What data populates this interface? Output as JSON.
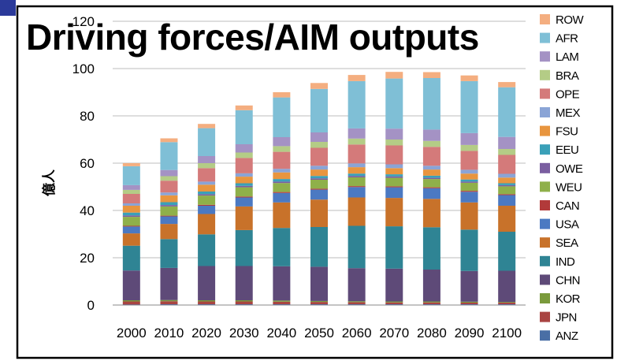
{
  "chart_data": {
    "type": "bar",
    "stacked": true,
    "title": "Driving forces/AIM outputs",
    "ylabel": "億人",
    "xlabel": "",
    "ylim": [
      0,
      120
    ],
    "yticks": [
      0,
      20,
      40,
      60,
      80,
      100,
      120
    ],
    "grid": true,
    "legend_position": "right",
    "categories": [
      "2000",
      "2010",
      "2020",
      "2030",
      "2040",
      "2050",
      "2060",
      "2070",
      "2080",
      "2090",
      "2100"
    ],
    "series": [
      {
        "name": "ANZ",
        "color": "#4a6fa5",
        "values": [
          0.2,
          0.3,
          0.3,
          0.3,
          0.3,
          0.3,
          0.3,
          0.3,
          0.3,
          0.3,
          0.3
        ]
      },
      {
        "name": "JPN",
        "color": "#a94442",
        "values": [
          1.3,
          1.3,
          1.2,
          1.2,
          1.1,
          1.0,
          0.9,
          0.8,
          0.8,
          0.7,
          0.7
        ]
      },
      {
        "name": "KOR",
        "color": "#7a9a3c",
        "values": [
          0.5,
          0.5,
          0.5,
          0.5,
          0.5,
          0.4,
          0.4,
          0.4,
          0.4,
          0.4,
          0.3
        ]
      },
      {
        "name": "CHN",
        "color": "#5e4a78",
        "values": [
          12.6,
          13.6,
          14.5,
          14.5,
          14.5,
          14.5,
          14.0,
          13.9,
          13.5,
          13.0,
          13.2
        ]
      },
      {
        "name": "IND",
        "color": "#2f8494",
        "values": [
          10.5,
          12.2,
          13.4,
          15.2,
          16.2,
          16.8,
          17.9,
          17.9,
          17.9,
          17.5,
          16.5
        ]
      },
      {
        "name": "SEA",
        "color": "#c8722a",
        "values": [
          5.2,
          6.4,
          8.6,
          10.0,
          10.8,
          11.6,
          12.0,
          12.0,
          12.0,
          11.5,
          11.0
        ]
      },
      {
        "name": "USA",
        "color": "#4b79c2",
        "values": [
          2.9,
          3.2,
          3.5,
          3.8,
          4.0,
          4.2,
          4.4,
          4.5,
          4.5,
          4.5,
          4.5
        ]
      },
      {
        "name": "CAN",
        "color": "#b23a3a",
        "values": [
          0.3,
          0.3,
          0.4,
          0.4,
          0.4,
          0.4,
          0.4,
          0.4,
          0.4,
          0.4,
          0.4
        ]
      },
      {
        "name": "WEU",
        "color": "#8fb04a",
        "values": [
          3.8,
          3.9,
          3.9,
          3.9,
          3.8,
          3.8,
          3.7,
          3.6,
          3.5,
          3.4,
          3.3
        ]
      },
      {
        "name": "OWE",
        "color": "#7a5ea0",
        "values": [
          0.6,
          0.6,
          0.6,
          0.6,
          0.6,
          0.6,
          0.6,
          0.6,
          0.5,
          0.5,
          0.5
        ]
      },
      {
        "name": "EEU",
        "color": "#3aa0b8",
        "values": [
          1.2,
          1.2,
          1.1,
          1.1,
          1.1,
          1.0,
          1.0,
          0.9,
          0.9,
          0.9,
          0.8
        ]
      },
      {
        "name": "FSU",
        "color": "#e8953f",
        "values": [
          2.9,
          2.9,
          2.9,
          2.8,
          2.8,
          2.7,
          2.7,
          2.6,
          2.6,
          2.5,
          2.4
        ]
      },
      {
        "name": "MEX",
        "color": "#8aa4d6",
        "values": [
          1.0,
          1.2,
          1.3,
          1.4,
          1.5,
          1.6,
          1.6,
          1.6,
          1.6,
          1.6,
          1.6
        ]
      },
      {
        "name": "OPE",
        "color": "#d47a7a",
        "values": [
          4.0,
          5.0,
          5.7,
          6.5,
          7.2,
          7.6,
          8.0,
          8.0,
          8.0,
          8.0,
          8.0
        ]
      },
      {
        "name": "BRA",
        "color": "#b4cc86",
        "values": [
          1.7,
          1.9,
          2.1,
          2.3,
          2.4,
          2.5,
          2.5,
          2.5,
          2.5,
          2.5,
          2.5
        ]
      },
      {
        "name": "LAM",
        "color": "#a492c4",
        "values": [
          2.0,
          2.6,
          3.0,
          3.5,
          3.8,
          4.0,
          4.3,
          4.6,
          4.8,
          5.0,
          5.1
        ]
      },
      {
        "name": "AFR",
        "color": "#7fbfd6",
        "values": [
          8.0,
          11.8,
          11.8,
          14.4,
          16.8,
          18.4,
          20.0,
          21.2,
          21.8,
          22.0,
          21.0
        ]
      },
      {
        "name": "ROW",
        "color": "#f4ae80",
        "values": [
          1.3,
          1.6,
          1.8,
          2.0,
          2.2,
          2.5,
          2.6,
          2.8,
          2.5,
          2.4,
          2.2
        ]
      }
    ]
  }
}
